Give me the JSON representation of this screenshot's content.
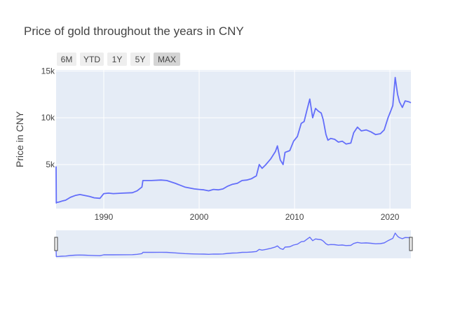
{
  "chart_data": {
    "type": "line",
    "title": "Price of gold throughout the years in CNY",
    "xlabel": "",
    "ylabel": "Price in CNY",
    "xlim": [
      1985,
      2022.2
    ],
    "ylim": [
      300,
      15100
    ],
    "x_ticks": [
      1990,
      2000,
      2010,
      2020
    ],
    "x_tick_labels": [
      "1990",
      "2000",
      "2010",
      "2020"
    ],
    "y_ticks": [
      5000,
      10000,
      15000
    ],
    "y_tick_labels": [
      "5k",
      "10k",
      "15k"
    ],
    "grid": true,
    "legend": "none",
    "rangeselector_buttons": [
      {
        "label": "6M",
        "active": false
      },
      {
        "label": "YTD",
        "active": false
      },
      {
        "label": "1Y",
        "active": false
      },
      {
        "label": "5Y",
        "active": false
      },
      {
        "label": "MAX",
        "active": true
      }
    ],
    "rangeslider": true,
    "series": [
      {
        "name": "Price",
        "color": "#636efa",
        "x": [
          1985.0,
          1985.02,
          1985.05,
          1985.3,
          1985.6,
          1986.0,
          1986.5,
          1987.0,
          1987.5,
          1988.0,
          1988.5,
          1989.0,
          1989.6,
          1990.0,
          1990.5,
          1991.0,
          1992.0,
          1993.0,
          1993.5,
          1994.0,
          1994.1,
          1995.0,
          1996.0,
          1996.6,
          1997.5,
          1998.5,
          1999.5,
          2000.0,
          2000.5,
          2001.0,
          2001.5,
          2002.0,
          2002.5,
          2003.0,
          2003.5,
          2004.0,
          2004.5,
          2005.0,
          2005.5,
          2006.0,
          2006.3,
          2006.6,
          2007.0,
          2007.5,
          2008.0,
          2008.2,
          2008.5,
          2008.8,
          2009.0,
          2009.5,
          2009.9,
          2010.3,
          2010.7,
          2011.0,
          2011.3,
          2011.6,
          2011.9,
          2012.2,
          2012.5,
          2012.8,
          2013.0,
          2013.3,
          2013.5,
          2013.8,
          2014.2,
          2014.6,
          2015.0,
          2015.4,
          2015.9,
          2016.2,
          2016.6,
          2017.0,
          2017.5,
          2018.0,
          2018.5,
          2019.0,
          2019.4,
          2019.8,
          2020.0,
          2020.3,
          2020.55,
          2020.8,
          2021.0,
          2021.3,
          2021.6,
          2022.0,
          2022.2
        ],
        "y": [
          4800,
          900,
          950,
          1000,
          1100,
          1200,
          1500,
          1700,
          1800,
          1700,
          1600,
          1450,
          1400,
          1900,
          1950,
          1900,
          1950,
          2000,
          2200,
          2600,
          3300,
          3300,
          3350,
          3300,
          3000,
          2600,
          2400,
          2350,
          2300,
          2200,
          2350,
          2300,
          2400,
          2700,
          2900,
          3000,
          3300,
          3350,
          3500,
          3800,
          5000,
          4600,
          5000,
          5600,
          6400,
          7000,
          5500,
          5000,
          6300,
          6500,
          7500,
          8000,
          9400,
          9600,
          10800,
          12000,
          10000,
          11000,
          10700,
          10500,
          9800,
          8200,
          7600,
          7800,
          7700,
          7400,
          7500,
          7200,
          7300,
          8400,
          9000,
          8600,
          8700,
          8500,
          8200,
          8300,
          8700,
          10000,
          10500,
          11300,
          14300,
          12500,
          11700,
          11100,
          11800,
          11700,
          11600
        ]
      }
    ]
  }
}
